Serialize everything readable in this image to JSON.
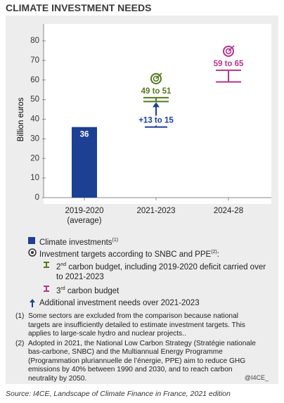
{
  "chart_data": {
    "type": "bar",
    "title": "CLIMATE INVESTMENT NEEDS",
    "y_label": "Billion euros",
    "categories": [
      "2019-2020 (average)",
      "2021-2023",
      "2024-28"
    ],
    "series": [
      {
        "name": "Climate investments",
        "note": "(1)",
        "color": "#1d3f94",
        "values": [
          36,
          null,
          null
        ]
      }
    ],
    "ranges": {
      "name": "Investment targets according to SNBC and PPE",
      "note": "(2)",
      "end": ":",
      "items": [
        {
          "ordinal": "2",
          "suffix": "nd",
          "name": " carbon budget, including 2019-2020 deficit carried over to 2021-2023",
          "color": "#55791f",
          "category": 1,
          "low": 49,
          "high": 51,
          "label": "49 to 51"
        },
        {
          "ordinal": "3",
          "suffix": "rd",
          "name": " carbon budget",
          "color": "#b0368e",
          "category": 2,
          "low": 59,
          "high": 65,
          "label": "59 to 65"
        }
      ]
    },
    "additional": {
      "name": "Additional investment needs over 2021-2023",
      "color": "#1d3f94",
      "category": 1,
      "low": 13,
      "high": 15,
      "label": "+13 to 15"
    },
    "ylim": [
      0,
      80
    ],
    "yticks": [
      0,
      10,
      20,
      30,
      40,
      50,
      60,
      70,
      80
    ],
    "notes": [
      {
        "mark": "(1)",
        "text": "Some sectors are excluded from the comparison because national targets are insufficiently detailed to estimate investment targets. This applies to large-scale hydro and nuclear projects.."
      },
      {
        "mark": "(2)",
        "text": "Adopted in 2021, the National Low Carbon Strategy (Stratégie nationale bas-carbone, SNBC) and the Multiannual Energy Programme (Programmation pluriannuelle de l’énergie, PPE) aim to reduce GHG emissions by 40% between 1990 and 2030, and to reach carbon neutrality by 2050."
      }
    ],
    "credit": "@I4CE_",
    "source": "Source: I4CE, Landscape of Climate Finance in France, 2021 edition"
  }
}
